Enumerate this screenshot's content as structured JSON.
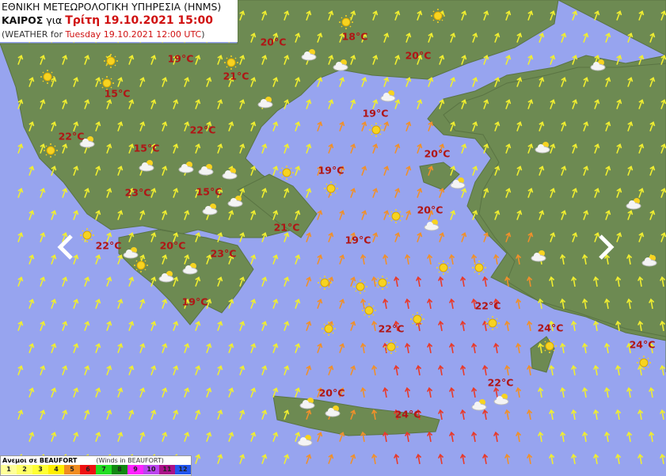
{
  "header": {
    "line1": "ΕΘΝΙΚΗ ΜΕΤΕΩΡΟΛΟΓΙΚΗ ΥΠΗΡΕΣΙΑ (HNMS)",
    "line2_prefix": "ΚΑΙΡΟΣ",
    "line2_for": "για",
    "line2_date": "Τρίτη 19.10.2021 15:00",
    "line3_prefix": "(WEATHER for",
    "line3_date": "Tuesday 19.10.2021 12:00 UTC",
    "line3_suffix": ")"
  },
  "temperatures": [
    "20°C",
    "18°C",
    "20°C",
    "19°C",
    "21°C",
    "15°C",
    "19°C",
    "22°C",
    "22°C",
    "15°C",
    "20°C",
    "19°C",
    "23°C",
    "15°C",
    "20°C",
    "21°C",
    "19°C",
    "22°C",
    "20°C",
    "23°C",
    "19°C",
    "22°C",
    "22°C",
    "24°C",
    "24°C",
    "22°C",
    "20°C",
    "24°C"
  ],
  "navigation": {
    "prev_icon": "chevron-left-icon",
    "next_icon": "chevron-right-icon"
  },
  "legend": {
    "title": "Ανεμοι σε BEAUFORT",
    "subtitle": "(Winds in BEAUFORT)",
    "scale": [
      {
        "label": "1",
        "color": "#ffff99"
      },
      {
        "label": "2",
        "color": "#ffff66"
      },
      {
        "label": "3",
        "color": "#ffff33"
      },
      {
        "label": "4",
        "color": "#ffee00"
      },
      {
        "label": "5",
        "color": "#f08c20"
      },
      {
        "label": "6",
        "color": "#ee1111"
      },
      {
        "label": "7",
        "color": "#22dd22"
      },
      {
        "label": "8",
        "color": "#118811"
      },
      {
        "label": "9",
        "color": "#ff22ff"
      },
      {
        "label": "10",
        "color": "#bb44ee"
      },
      {
        "label": "11",
        "color": "#aa1188"
      },
      {
        "label": "12",
        "color": "#2255ee"
      }
    ]
  },
  "colors": {
    "sea": "#97a4ef",
    "land": "#6d8a52",
    "temperature": "#b01515"
  },
  "weather_icons": [
    "sun-icon",
    "partly-cloudy-icon"
  ]
}
